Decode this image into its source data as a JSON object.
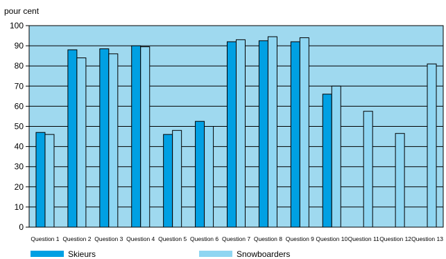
{
  "chart_data": {
    "type": "bar",
    "title": "",
    "ylabel": "pour cent",
    "xlabel": "",
    "ylim": [
      0,
      100
    ],
    "yticks": [
      0,
      10,
      20,
      30,
      40,
      50,
      60,
      70,
      80,
      90,
      100
    ],
    "grid": true,
    "legend_position": "bottom",
    "plot_background": "#9fd9ef",
    "categories": [
      "Question 1",
      "Question 2",
      "Question 3",
      "Question 4",
      "Question 5",
      "Question 6",
      "Question 7",
      "Question 8",
      "Question 9",
      "Question 10",
      "Question 11",
      "Question 12",
      "Question 13"
    ],
    "series": [
      {
        "name": "Skieurs",
        "color": "#00a0e3",
        "values": [
          47,
          88,
          88.5,
          90,
          46,
          52.5,
          92,
          92.5,
          92,
          66,
          null,
          null,
          null
        ]
      },
      {
        "name": "Snowboarders",
        "color": "#8fd6f2",
        "values": [
          46,
          84,
          86,
          89.5,
          48,
          50,
          93,
          94.5,
          94,
          70,
          57.5,
          46.5,
          81
        ]
      }
    ]
  }
}
